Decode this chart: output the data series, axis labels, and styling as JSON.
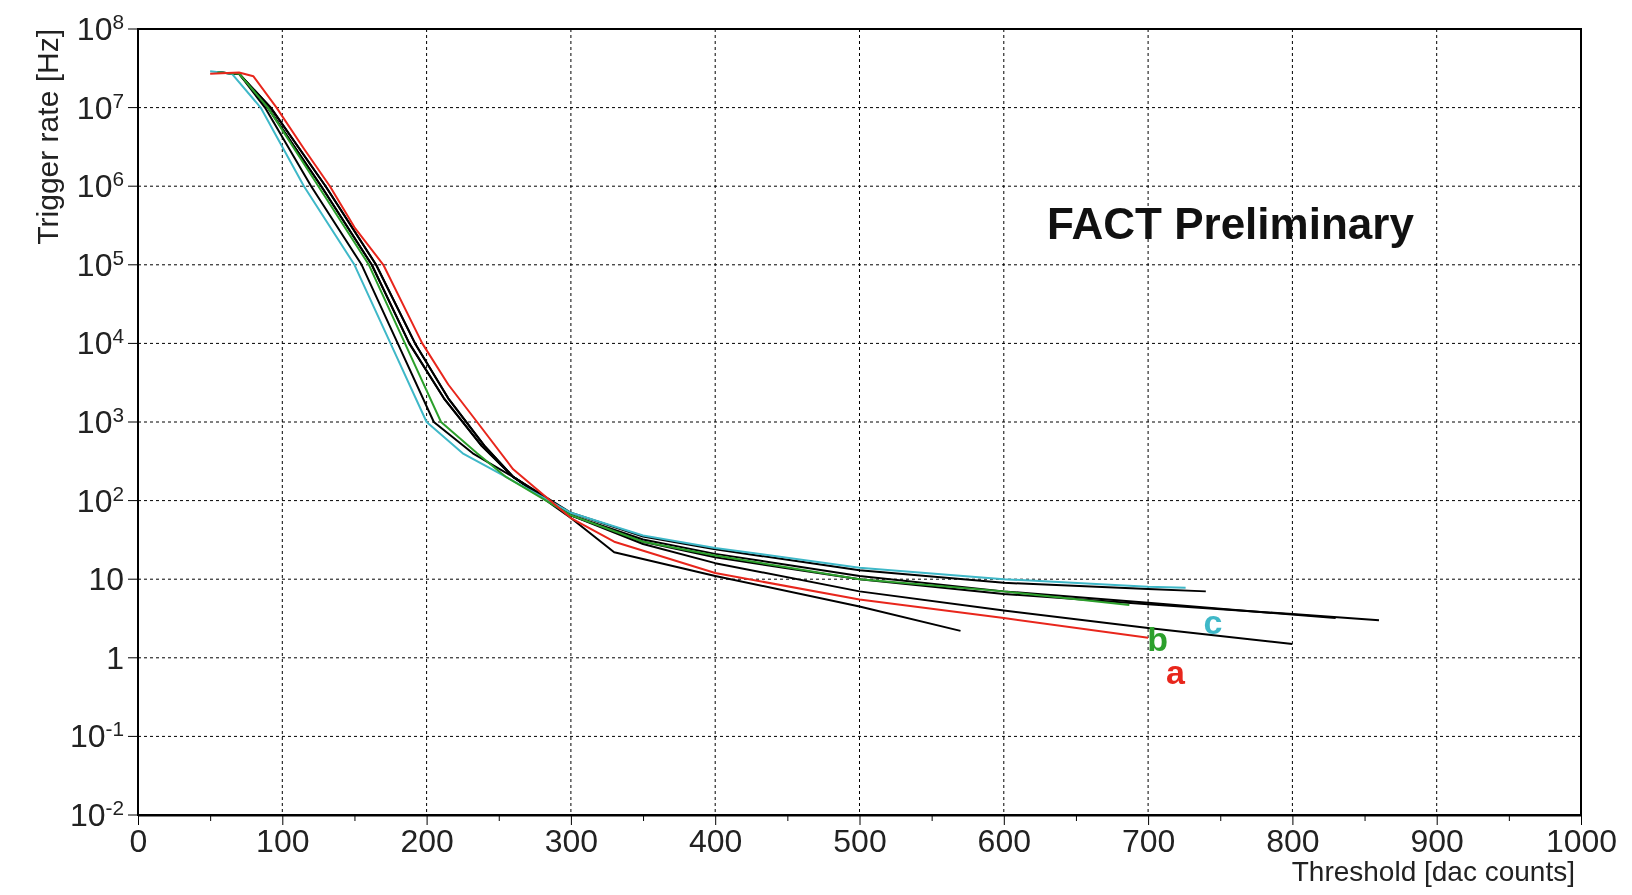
{
  "chart_data": {
    "type": "line",
    "xlabel": "Threshold [dac counts]",
    "ylabel": "Trigger rate [Hz]",
    "annotations": [
      "FACT Preliminary"
    ],
    "xlim": [
      0,
      1000
    ],
    "xticks": [
      0,
      {
        "value": 50,
        "label": null
      },
      100,
      {
        "value": 150,
        "label": null
      },
      200,
      {
        "value": 250,
        "label": null
      },
      300,
      {
        "value": 350,
        "label": null
      },
      400,
      {
        "value": 450,
        "label": null
      },
      500,
      {
        "value": 550,
        "label": null
      },
      600,
      {
        "value": 650,
        "label": null
      },
      700,
      {
        "value": 750,
        "label": null
      },
      800,
      {
        "value": 850,
        "label": null
      },
      900,
      {
        "value": 950,
        "label": null
      },
      1000
    ],
    "ylim": [
      0.01,
      100000000
    ],
    "yticks": [
      {
        "value": 0.01,
        "label": "10$^{-2}$"
      },
      {
        "value": 0.1,
        "label": "10$^{-1}$"
      },
      1,
      10,
      {
        "value": 100,
        "label": "10$^{2}$"
      },
      {
        "value": 1000,
        "label": "10$^{3}$"
      },
      {
        "value": 10000,
        "label": "10$^{4}$"
      },
      {
        "value": 100000,
        "label": "10$^{5}$"
      },
      {
        "value": 1000000,
        "label": "10$^{6}$"
      },
      {
        "value": 10000000,
        "label": "10$^{7}$"
      },
      {
        "value": 100000000,
        "label": "10$^{8}$"
      }
    ],
    "log": "y",
    "grid": true,
    "legend": false,
    "line_style": "solid",
    "marker": "none",
    "series": [
      {
        "color": "#000000",
        "x": [
          55,
          70,
          92,
          130,
          165,
          192,
          215,
          240,
          260,
          300,
          330,
          400,
          500,
          570
        ],
        "values": [
          28000000,
          27000000,
          10000000,
          1000000,
          100000,
          10000,
          2000,
          500,
          200,
          60,
          22,
          11,
          4.5,
          2.2
        ]
      },
      {
        "color": "#000000",
        "x": [
          55,
          70,
          92,
          130,
          165,
          192,
          215,
          240,
          260,
          300,
          350,
          400,
          500,
          600,
          700,
          800
        ],
        "values": [
          28000000,
          27000000,
          10000000,
          1000000,
          100000,
          10000,
          2000,
          500,
          200,
          65,
          28,
          16,
          7,
          4,
          2.4,
          1.5
        ]
      },
      {
        "color": "#000000",
        "x": [
          55,
          70,
          90,
          127,
          162,
          188,
          212,
          238,
          260,
          300,
          350,
          400,
          500,
          600,
          700,
          800,
          860
        ],
        "values": [
          28000000,
          27000000,
          10000000,
          1000000,
          100000,
          10000,
          2000,
          500,
          200,
          65,
          30,
          19,
          10,
          6.5,
          4.8,
          3.6,
          3
        ]
      },
      {
        "color": "#000000",
        "x": [
          55,
          70,
          90,
          127,
          162,
          188,
          212,
          238,
          260,
          300,
          350,
          400,
          500,
          600,
          700,
          830
        ],
        "values": [
          28000000,
          27000000,
          10000000,
          1000000,
          100000,
          10000,
          2000,
          500,
          200,
          65,
          32,
          21,
          11,
          7,
          5,
          3.2
        ]
      },
      {
        "color": "#000000",
        "x": [
          55,
          70,
          88,
          120,
          155,
          180,
          205,
          232,
          260,
          300,
          350,
          400,
          500,
          600,
          700,
          740
        ],
        "values": [
          28000000,
          27000000,
          10000000,
          1000000,
          100000,
          10000,
          1000,
          400,
          200,
          70,
          35,
          24,
          13,
          9,
          7.5,
          7
        ]
      },
      {
        "name": "c",
        "color": "#3fb8c8",
        "x": [
          50,
          65,
          85,
          115,
          150,
          175,
          200,
          225,
          255,
          300,
          350,
          400,
          500,
          600,
          700,
          726
        ],
        "values": [
          29000000,
          27000000,
          10000000,
          1000000,
          100000,
          10000,
          1000,
          400,
          200,
          70,
          36,
          25,
          14,
          10,
          8,
          7.8
        ]
      },
      {
        "name": "b",
        "color": "#2ca02c",
        "x": [
          55,
          70,
          90,
          125,
          160,
          185,
          210,
          235,
          255,
          300,
          350,
          400,
          500,
          600,
          687
        ],
        "values": [
          28000000,
          27000000,
          10000000,
          1000000,
          100000,
          10000,
          1000,
          400,
          200,
          65,
          30,
          20,
          10,
          7,
          4.7
        ]
      },
      {
        "name": "a",
        "color": "#e8261c",
        "x": [
          50,
          70,
          80,
          96,
          115,
          133,
          150,
          170,
          197,
          215,
          235,
          260,
          300,
          330,
          400,
          500,
          600,
          700
        ],
        "values": [
          27000000,
          28000000,
          25000000,
          10000000,
          3000000,
          1000000,
          300000,
          100000,
          10000,
          3000,
          1000,
          250,
          60,
          30,
          12,
          5.5,
          3.2,
          1.8
        ]
      }
    ]
  }
}
